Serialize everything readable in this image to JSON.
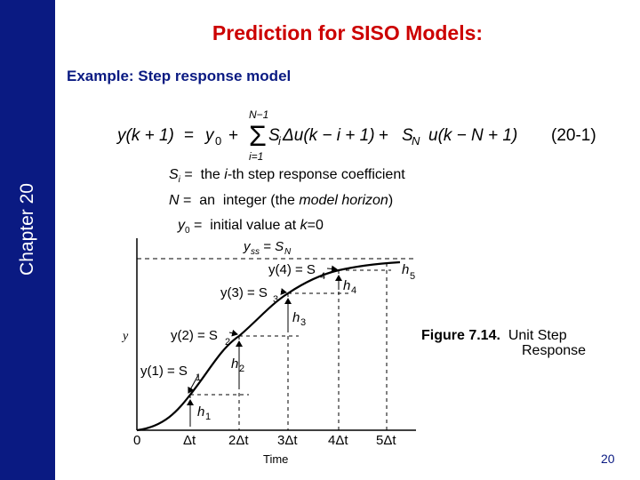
{
  "sidebar": {
    "label": "Chapter 20",
    "color": "#0a1a82"
  },
  "title": "Prediction for SISO Models:",
  "subtitle": "Example: Step response model",
  "equation": {
    "lhs": "y(k + 1)",
    "eq": "=",
    "y0": "y",
    "y0_sub": "0",
    "plus1": "+",
    "sum_upper": "N−1",
    "sum_lower": "i=1",
    "sum_term": "S",
    "sum_term_sub": "i",
    "delta_term": "Δu(k − i + 1)",
    "plus2": "+",
    "last_term": "S",
    "last_term_sub": "N",
    "last_arg": "u(k − N + 1)",
    "number": "(20-1)"
  },
  "definitions": {
    "si_symbol": "S",
    "si_sub": "i",
    "si_text_pre": " =  the ",
    "si_italic": "i",
    "si_text_post": "-th step response  coefficient",
    "n_symbol": "N",
    "n_text_pre": " =  an  integer (the ",
    "n_italic": "model horizon",
    "n_text_post": ")",
    "y0_symbol": "y",
    "y0_sub": "0",
    "y0_text_pre": " =  initial value at ",
    "y0_italic": "k",
    "y0_text_post": "=0"
  },
  "figure": {
    "y_axis_label": "y",
    "x_axis_label": "Time",
    "x_ticks": [
      "0",
      "Δt",
      "2Δt",
      "3Δt",
      "4Δt",
      "5Δt"
    ],
    "yss_label": "y",
    "yss_sub": "ss",
    "yss_rhs": " = S",
    "yss_rhs_sub": "N",
    "point_labels": [
      {
        "y": "y(1) = S",
        "sub": "1"
      },
      {
        "y": "y(2) = S",
        "sub": "2"
      },
      {
        "y": "y(3) = S",
        "sub": "3"
      },
      {
        "y": "y(4) = S",
        "sub": "4"
      }
    ],
    "h_labels": [
      {
        "h": "h",
        "sub": "1"
      },
      {
        "h": "h",
        "sub": "2"
      },
      {
        "h": "h",
        "sub": "3"
      },
      {
        "h": "h",
        "sub": "4"
      },
      {
        "h": "h",
        "sub": "5"
      }
    ]
  },
  "caption": {
    "bold": "Figure 7.14.",
    "line1": "  Unit Step",
    "line2": "Response"
  },
  "page_number": "20"
}
